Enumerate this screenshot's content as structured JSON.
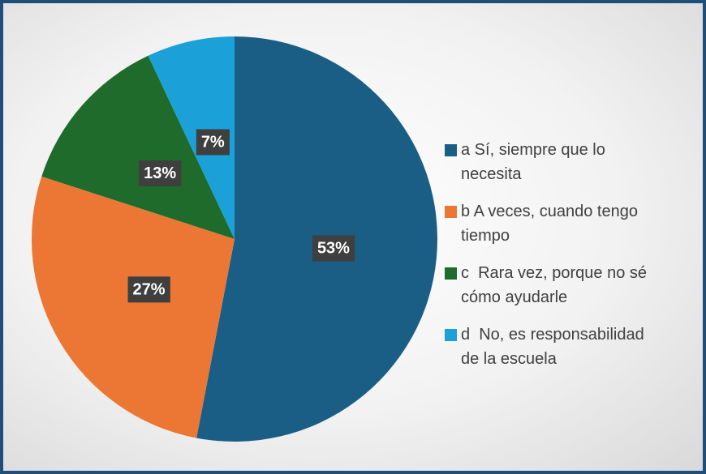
{
  "chart_data": {
    "type": "pie",
    "categories": [
      "a Sí, siempre que lo necesita",
      "b A veces, cuando tengo tiempo",
      "c  Rara vez, porque no sé cómo ayudarle",
      "d  No, es responsabilidad de la escuela"
    ],
    "values": [
      53,
      27,
      13,
      7
    ],
    "value_labels": [
      "53%",
      "27%",
      "13%",
      "7%"
    ],
    "colors": [
      "#1b5e85",
      "#ec7734",
      "#1f6b2c",
      "#1ba1d8"
    ],
    "legend": "right"
  }
}
